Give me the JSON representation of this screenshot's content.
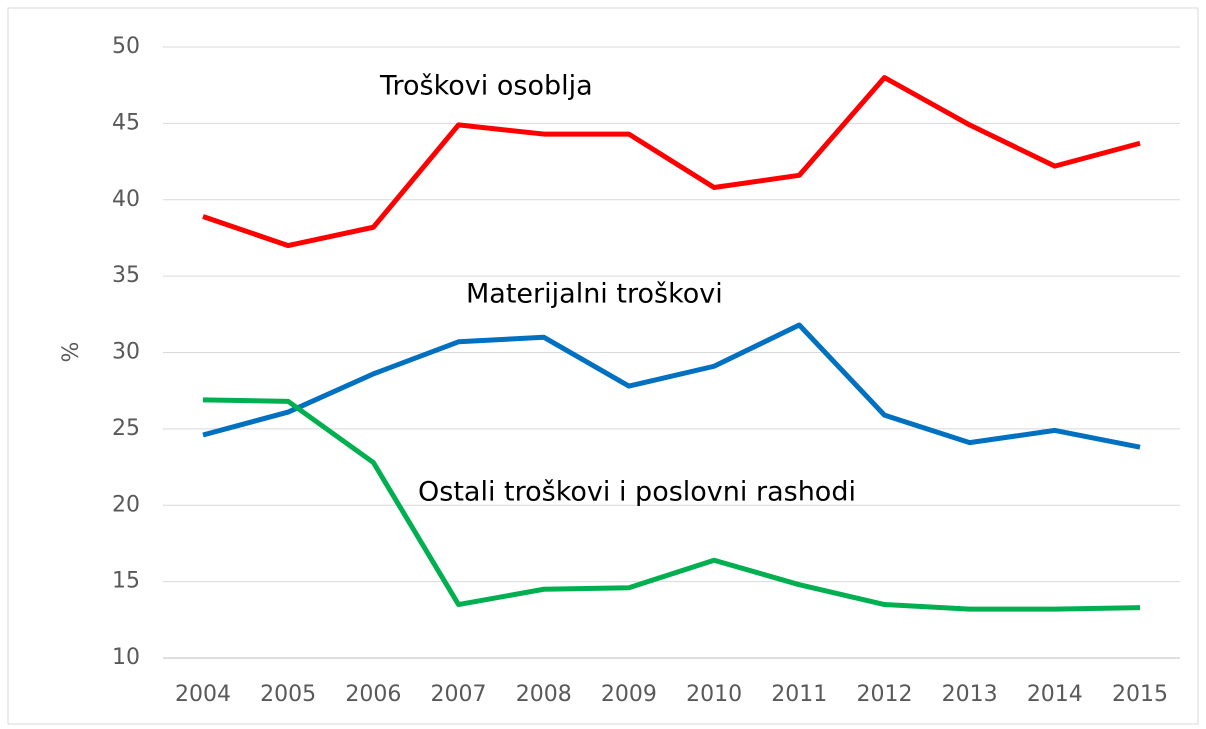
{
  "chart_data": {
    "type": "line",
    "y_label": "%",
    "categories": [
      "2004",
      "2005",
      "2006",
      "2007",
      "2008",
      "2009",
      "2010",
      "2011",
      "2012",
      "2013",
      "2014",
      "2015"
    ],
    "series": [
      {
        "name": "Troškovi osoblja",
        "color": "#ff0000",
        "values": [
          38.9,
          37.0,
          38.2,
          44.9,
          44.3,
          44.3,
          40.8,
          41.6,
          48.0,
          44.9,
          42.2,
          43.7
        ]
      },
      {
        "name": "Materijalni troškovi",
        "color": "#0070c0",
        "values": [
          24.6,
          26.1,
          28.6,
          30.7,
          31.0,
          27.8,
          29.1,
          31.8,
          25.9,
          24.1,
          24.9,
          23.8
        ]
      },
      {
        "name": "Ostali troškovi i poslovni rashodi",
        "color": "#00b050",
        "values": [
          26.9,
          26.8,
          22.8,
          13.5,
          14.5,
          14.6,
          16.4,
          14.8,
          13.5,
          13.2,
          13.2,
          13.3
        ]
      }
    ],
    "ylim": [
      10,
      50
    ],
    "yticks": [
      10,
      15,
      20,
      25,
      30,
      35,
      40,
      45,
      50
    ],
    "grid": true
  }
}
